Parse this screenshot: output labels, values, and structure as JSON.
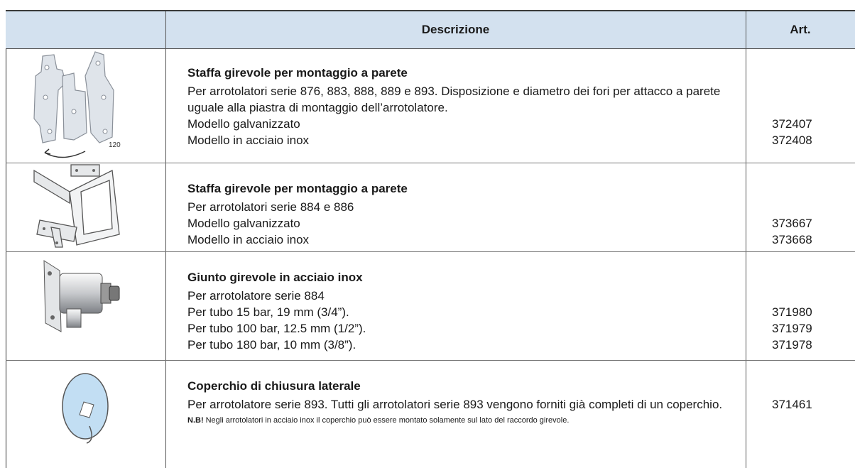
{
  "table": {
    "header": {
      "description": "Descrizione",
      "article": "Art."
    },
    "rows": [
      {
        "image_label": "120",
        "title": "Staffa girevole per montaggio a parete",
        "lines": [
          {
            "text": "Per arrotolatori serie 876, 883, 888, 889 e 893. Disposizione e diametro dei fori per attacco a parete uguale alla piastra di montaggio dell’arrotolatore."
          },
          {
            "text": "Modello galvanizzato",
            "art": "372407"
          },
          {
            "text": "Modello in acciaio inox",
            "art": "372408"
          }
        ]
      },
      {
        "title": "Staffa girevole per montaggio a parete",
        "lines": [
          {
            "text": "Per arrotolatori serie 884 e 886"
          },
          {
            "text": "Modello galvanizzato",
            "art": "373667"
          },
          {
            "text": "Modello in acciaio inox",
            "art": "373668"
          }
        ]
      },
      {
        "title": "Giunto girevole in acciaio inox",
        "lines": [
          {
            "text": "Per arrotolatore serie 884"
          },
          {
            "text": "Per tubo 15 bar, 19 mm (3/4”).",
            "art": "371980"
          },
          {
            "text": "Per tubo 100 bar, 12.5 mm (1/2”).",
            "art": "371979"
          },
          {
            "text": "Per tubo 180 bar, 10 mm (3/8”).",
            "art": "371978"
          }
        ]
      },
      {
        "title": "Coperchio di chiusura laterale",
        "lines": [
          {
            "text": "Per arrotolatore serie 893. Tutti gli arrotolatori serie 893 vengono forniti già completi di un coperchio.",
            "art": "371461"
          }
        ],
        "note": {
          "emphasis": "N.B!",
          "text": "Negli arrotolatori in acciaio inox il coperchio può essere montato solamente sul lato del raccordo girevole."
        }
      }
    ]
  }
}
